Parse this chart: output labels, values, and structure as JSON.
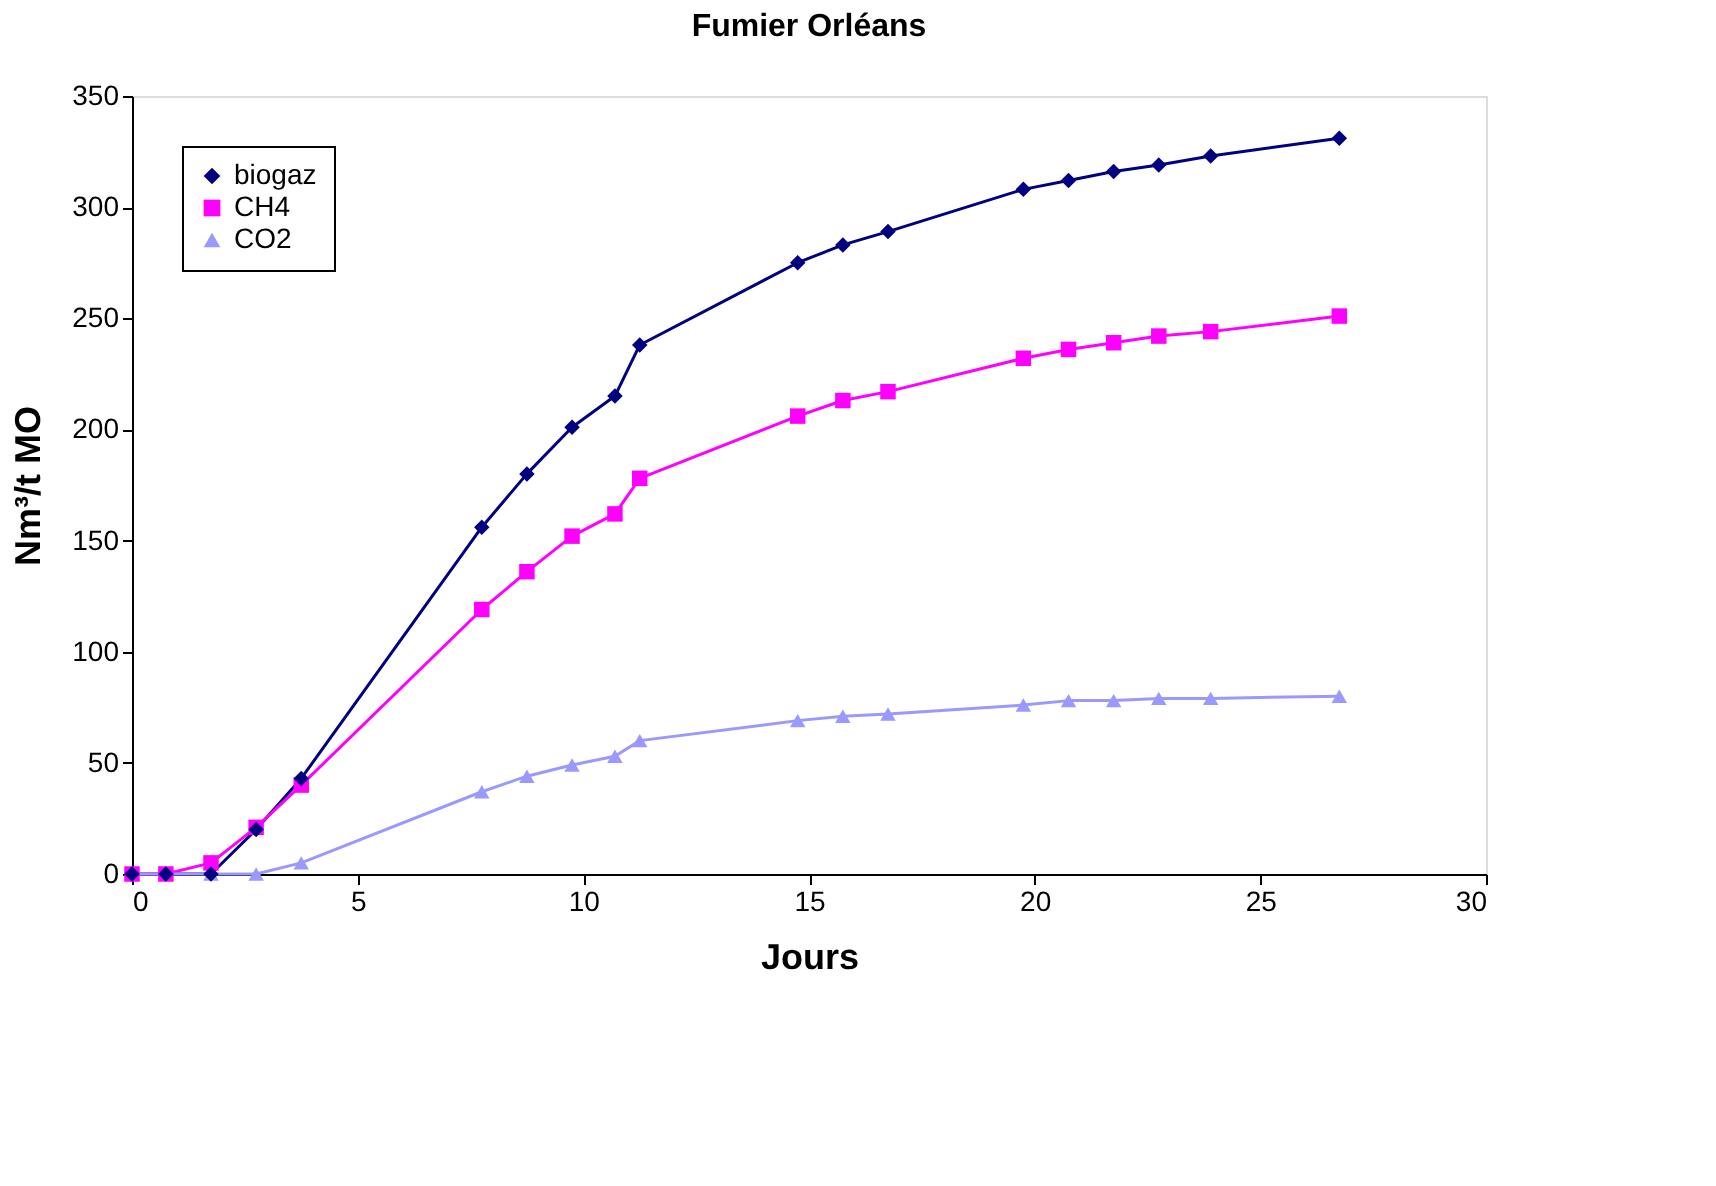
{
  "chart_data": {
    "type": "line",
    "title": "Fumier Orléans",
    "xlabel": "Jours",
    "ylabel": "Nm³/t MO",
    "x": [
      0,
      0.75,
      1.75,
      2.75,
      3.75,
      7.75,
      8.75,
      9.75,
      10.7,
      11.25,
      14.75,
      15.75,
      16.75,
      19.75,
      20.75,
      21.75,
      22.75,
      23.9,
      26.75
    ],
    "series": [
      {
        "name": "biogaz",
        "color": "#000080",
        "marker": "diamond",
        "values": [
          0,
          0,
          0,
          20,
          43,
          156,
          180,
          201,
          215,
          238,
          275,
          283,
          289,
          308,
          312,
          316,
          319,
          323,
          331
        ]
      },
      {
        "name": "CH4",
        "color": "#ff00ff",
        "marker": "square",
        "values": [
          0,
          0,
          5,
          21,
          40,
          119,
          136,
          152,
          162,
          178,
          206,
          213,
          217,
          232,
          236,
          239,
          242,
          244,
          251
        ]
      },
      {
        "name": "CO2",
        "color": "#9999ff",
        "marker": "triangle",
        "values": [
          0,
          0,
          0,
          0,
          5,
          37,
          44,
          49,
          53,
          60,
          69,
          71,
          72,
          76,
          78,
          78,
          79,
          79,
          80
        ]
      }
    ],
    "xlim": [
      0,
      30
    ],
    "xticks": [
      0,
      5,
      10,
      15,
      20,
      25,
      30
    ],
    "ylim": [
      0,
      350
    ],
    "yticks": [
      0,
      50,
      100,
      150,
      200,
      250,
      300,
      350
    ],
    "grid": false,
    "legend": "top left",
    "line_style": "solid"
  }
}
